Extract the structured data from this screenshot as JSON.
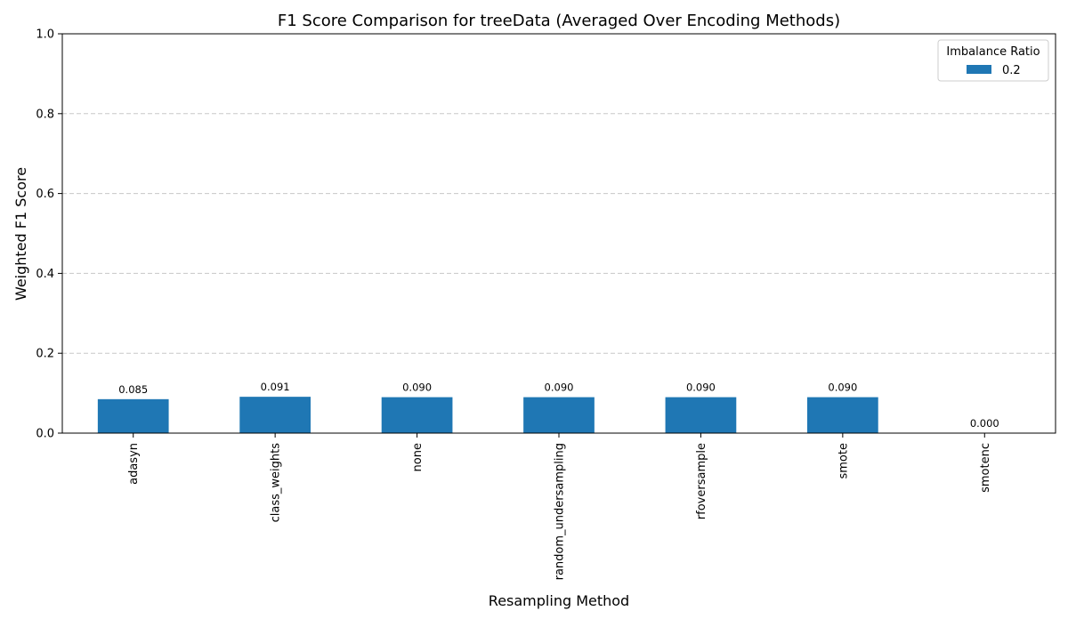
{
  "chart_data": {
    "type": "bar",
    "title": "F1 Score Comparison for treeData (Averaged Over Encoding Methods)",
    "xlabel": "Resampling Method",
    "ylabel": "Weighted F1 Score",
    "ylim": [
      0,
      1
    ],
    "yticks": [
      "0.0",
      "0.2",
      "0.4",
      "0.6",
      "0.8",
      "1.0"
    ],
    "grid": true,
    "legend": {
      "title": "Imbalance Ratio",
      "placement": "top-right"
    },
    "categories": [
      "adasyn",
      "class_weights",
      "none",
      "random_undersampling",
      "rfoversample",
      "smote",
      "smotenc"
    ],
    "series": [
      {
        "name": "0.2",
        "color": "#1f77b4",
        "values": [
          0.085,
          0.091,
          0.09,
          0.09,
          0.09,
          0.09,
          0.0
        ],
        "labels": [
          "0.085",
          "0.091",
          "0.090",
          "0.090",
          "0.090",
          "0.090",
          "0.000"
        ]
      }
    ]
  }
}
